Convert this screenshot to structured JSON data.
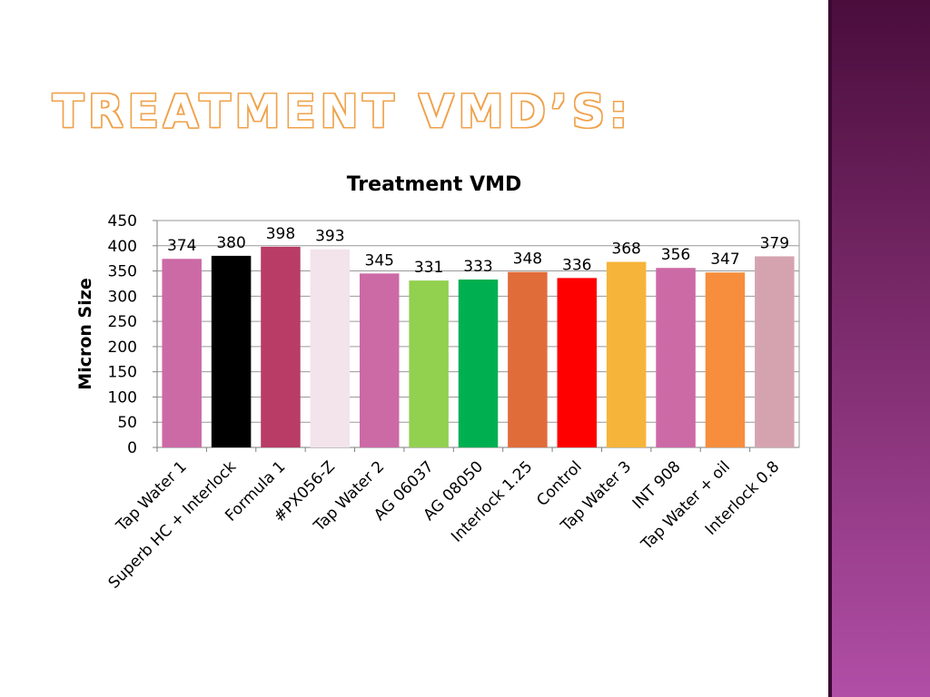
{
  "slide": {
    "title": "TREATMENT VMD’S:",
    "accent_color": "#f0a14a",
    "side_band_colors": [
      "#4a0d3c",
      "#b14ea6"
    ]
  },
  "chart_data": {
    "type": "bar",
    "title": "Treatment VMD",
    "xlabel": "",
    "ylabel": "Micron Size",
    "ylim": [
      0,
      450
    ],
    "yticks": [
      0,
      50,
      100,
      150,
      200,
      250,
      300,
      350,
      400,
      450
    ],
    "grid": true,
    "legend": "none",
    "categories": [
      "Tap Water 1",
      "Superb HC + Interlock",
      "Formula 1",
      "#PX056-Z",
      "Tap Water 2",
      "AG 06037",
      "AG 08050",
      "Interlock 1.25",
      "Control",
      "Tap Water 3",
      "INT 908",
      "Tap Water + oil",
      "Interlock 0.8"
    ],
    "values": [
      374,
      380,
      398,
      393,
      345,
      331,
      333,
      348,
      336,
      368,
      356,
      347,
      379
    ],
    "colors": [
      "#cc6aa6",
      "#000000",
      "#b83c66",
      "#f2e4ea",
      "#cc6aa6",
      "#92d050",
      "#00b050",
      "#e06c3a",
      "#ff0000",
      "#f7b43a",
      "#cc6aa6",
      "#f68e3e",
      "#d5a3b0"
    ]
  }
}
